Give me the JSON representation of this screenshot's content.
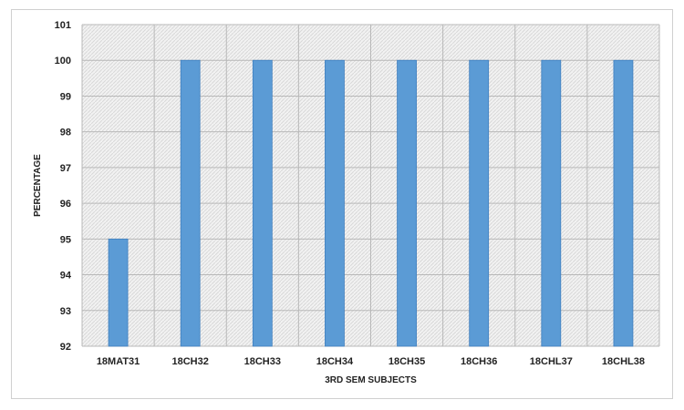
{
  "chart_data": {
    "type": "bar",
    "title": "",
    "xlabel": "3RD SEM SUBJECTS",
    "ylabel": "PERCENTAGE",
    "categories": [
      "18MAT31",
      "18CH32",
      "18CH33",
      "18CH34",
      "18CH35",
      "18CH36",
      "18CHL37",
      "18CHL38"
    ],
    "values": [
      95,
      100,
      100,
      100,
      100,
      100,
      100,
      100
    ],
    "ylim": [
      92,
      101
    ],
    "yticks": [
      92,
      93,
      94,
      95,
      96,
      97,
      98,
      99,
      100,
      101
    ],
    "grid": true,
    "legend": "none",
    "bar_color": "#5b9bd5",
    "bar_edge_color": "#3f7fbf",
    "plot_background": "#efefef",
    "grid_color": "#b8b8b8"
  }
}
